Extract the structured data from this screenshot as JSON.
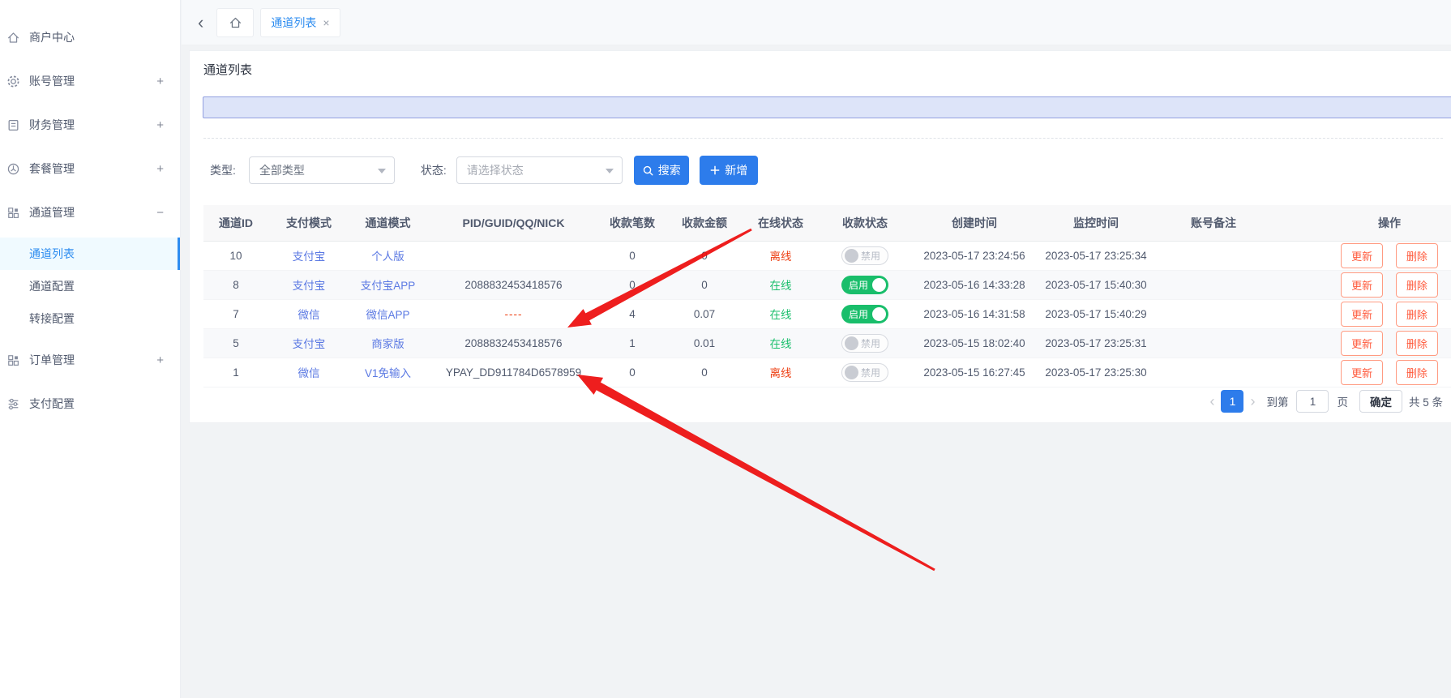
{
  "sidebar": {
    "items": [
      {
        "label": "商户中心",
        "icon": "home-icon",
        "expand": ""
      },
      {
        "label": "账号管理",
        "icon": "gear-icon",
        "expand": "+"
      },
      {
        "label": "财务管理",
        "icon": "finance-icon",
        "expand": "+"
      },
      {
        "label": "套餐管理",
        "icon": "package-icon",
        "expand": "+"
      },
      {
        "label": "通道管理",
        "icon": "grid-icon",
        "expand": "−",
        "children": [
          {
            "label": "通道列表",
            "active": true
          },
          {
            "label": "通道配置",
            "active": false
          },
          {
            "label": "转接配置",
            "active": false
          }
        ]
      },
      {
        "label": "订单管理",
        "icon": "grid-icon",
        "expand": "+"
      },
      {
        "label": "支付配置",
        "icon": "settings-icon",
        "expand": ""
      }
    ]
  },
  "tabbar": {
    "back_icon": "‹",
    "active_tab": "通道列表",
    "close_icon": "×"
  },
  "page": {
    "title": "通道列表"
  },
  "filters": {
    "type_label": "类型:",
    "type_value": "全部类型",
    "status_label": "状态:",
    "status_placeholder": "请选择状态",
    "search_label": "搜索",
    "add_label": "新增"
  },
  "table": {
    "columns": [
      "通道ID",
      "支付模式",
      "通道模式",
      "PID/GUID/QQ/NICK",
      "收款笔数",
      "收款金额",
      "在线状态",
      "收款状态",
      "创建时间",
      "监控时间",
      "账号备注",
      "操作"
    ],
    "row_actions": [
      "更新",
      "删除"
    ],
    "rows": [
      {
        "id": "10",
        "pay_mode": "支付宝",
        "channel_mode": "个人版",
        "pid": "",
        "bills": "0",
        "amount": "0",
        "online": "离线",
        "online_state": "offline",
        "toggle_label": "禁用",
        "toggle_state": "off",
        "created": "2023-05-17 23:24:56",
        "monitored": "2023-05-17 23:25:34",
        "remark": ""
      },
      {
        "id": "8",
        "pay_mode": "支付宝",
        "channel_mode": "支付宝APP",
        "pid": "2088832453418576",
        "bills": "0",
        "amount": "0",
        "online": "在线",
        "online_state": "online",
        "toggle_label": "启用",
        "toggle_state": "on",
        "created": "2023-05-16 14:33:28",
        "monitored": "2023-05-17 15:40:30",
        "remark": ""
      },
      {
        "id": "7",
        "pay_mode": "微信",
        "channel_mode": "微信APP",
        "pid": "----",
        "bills": "4",
        "amount": "0.07",
        "online": "在线",
        "online_state": "online",
        "toggle_label": "启用",
        "toggle_state": "on",
        "created": "2023-05-16 14:31:58",
        "monitored": "2023-05-17 15:40:29",
        "remark": ""
      },
      {
        "id": "5",
        "pay_mode": "支付宝",
        "channel_mode": "商家版",
        "pid": "2088832453418576",
        "bills": "1",
        "amount": "0.01",
        "online": "在线",
        "online_state": "online",
        "toggle_label": "禁用",
        "toggle_state": "off",
        "created": "2023-05-15 18:02:40",
        "monitored": "2023-05-17 23:25:31",
        "remark": ""
      },
      {
        "id": "1",
        "pay_mode": "微信",
        "channel_mode": "V1免输入",
        "pid": "YPAY_DD911784D6578959",
        "bills": "0",
        "amount": "0",
        "online": "离线",
        "online_state": "offline",
        "toggle_label": "禁用",
        "toggle_state": "off",
        "created": "2023-05-15 16:27:45",
        "monitored": "2023-05-17 23:25:30",
        "remark": ""
      }
    ]
  },
  "pagination": {
    "prev_icon": "‹",
    "page": "1",
    "next_icon": "›",
    "jump_prefix": "到第",
    "jump_value": "1",
    "jump_suffix": "页",
    "confirm_label": "确定",
    "total_text": "共 5 条"
  },
  "icons": {
    "back": "‹",
    "close": "×",
    "prev": "‹",
    "next": "›",
    "home": "house",
    "gear": "gear",
    "finance": "document",
    "package": "pie-circle",
    "grid": "grid-squares",
    "settings": "sliders",
    "search": "magnifier",
    "add": "plus",
    "caret": "▾"
  },
  "colors": {
    "accent": "#2d7ceb",
    "tab_blue": "#2d8cf0",
    "link": "#5b79e3",
    "success": "#19be6b",
    "danger": "#ed4014",
    "action_button": "#ff5a3c",
    "arrow": "#ed0d0d",
    "notice_bg": "#dde4f9",
    "notice_border": "#93a0e0"
  }
}
